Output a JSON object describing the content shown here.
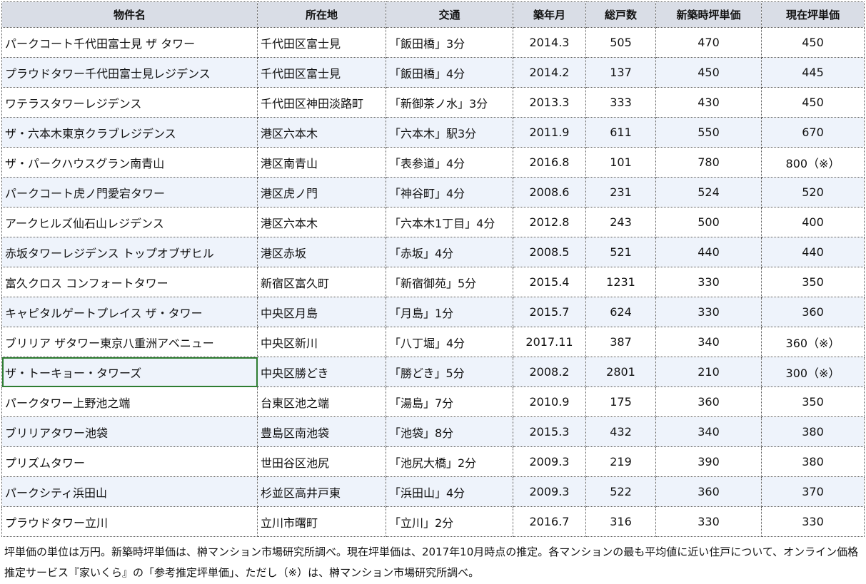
{
  "table": {
    "headers": [
      "物件名",
      "所在地",
      "交通",
      "築年月",
      "総戸数",
      "新築時坪単価",
      "現在坪単価"
    ],
    "rows": [
      [
        "パークコート千代田富士見 ザ タワー",
        "千代田区富士見",
        "「飯田橋」3分",
        "2014.3",
        "505",
        "470",
        "450"
      ],
      [
        "プラウドタワー千代田富士見レジデンス",
        "千代田区富士見",
        "「飯田橋」4分",
        "2014.2",
        "137",
        "450",
        "445"
      ],
      [
        "ワテラスタワーレジデンス",
        "千代田区神田淡路町",
        "「新御茶ノ水」3分",
        "2013.3",
        "333",
        "430",
        "450"
      ],
      [
        "ザ・六本木東京クラブレジデンス",
        "港区六本木",
        "「六本木」駅3分",
        "2011.9",
        "611",
        "550",
        "670"
      ],
      [
        "ザ・パークハウスグラン南青山",
        "港区南青山",
        "「表参道」4分",
        "2016.8",
        "101",
        "780",
        "800（※）"
      ],
      [
        "パークコート虎ノ門愛宕タワー",
        "港区虎ノ門",
        "「神谷町」4分",
        "2008.6",
        "231",
        "524",
        "520"
      ],
      [
        "アークヒルズ仙石山レジデンス",
        "港区六本木",
        "「六本木1丁目」4分",
        "2012.8",
        "243",
        "500",
        "400"
      ],
      [
        "赤坂タワーレジデンス トップオブザヒル",
        "港区赤坂",
        "「赤坂」4分",
        "2008.5",
        "521",
        "440",
        "440"
      ],
      [
        "富久クロス コンフォートタワー",
        "新宿区富久町",
        "「新宿御苑」5分",
        "2015.4",
        "1231",
        "330",
        "350"
      ],
      [
        "キャピタルゲートプレイス ザ・タワー",
        "中央区月島",
        "「月島」1分",
        "2015.7",
        "624",
        "330",
        "360"
      ],
      [
        "ブリリア ザタワー東京八重洲アベニュー",
        "中央区新川",
        "「八丁堀」4分",
        "2017.11",
        "387",
        "340",
        "360（※）"
      ],
      [
        "ザ・トーキョー・タワーズ",
        "中央区勝どき",
        "「勝どき」5分",
        "2008.2",
        "2801",
        "210",
        "300（※）"
      ],
      [
        "パークタワー上野池之端",
        "台東区池之端",
        "「湯島」7分",
        "2010.9",
        "175",
        "360",
        "350"
      ],
      [
        "ブリリアタワー池袋",
        "豊島区南池袋",
        "「池袋」8分",
        "2015.3",
        "432",
        "340",
        "380"
      ],
      [
        "プリズムタワー",
        "世田谷区池尻",
        "「池尻大橋」2分",
        "2009.3",
        "219",
        "390",
        "380"
      ],
      [
        "パークシティ浜田山",
        "杉並区高井戸東",
        "「浜田山」4分",
        "2009.3",
        "522",
        "360",
        "370"
      ],
      [
        "プラウドタワー立川",
        "立川市曙町",
        "「立川」2分",
        "2016.7",
        "316",
        "330",
        "330"
      ]
    ]
  },
  "note": "坪単価の単位は万円。新築時坪単価は、榊マンション市場研究所調べ。現在坪単価は、2017年10月時点の推定。各マンションの最も平均値に近い住戸について、オンライン価格推定サービス『家いくら』の「参考推定坪単価」、ただし（※）は、榊マンション市場研究所調べ。"
}
